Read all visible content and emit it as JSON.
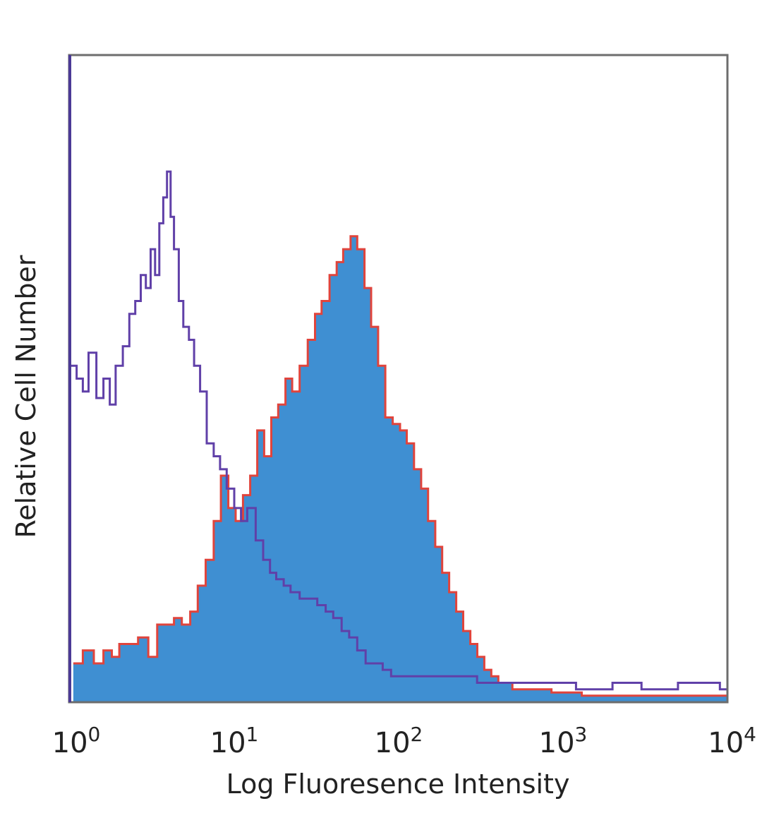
{
  "chart_data": {
    "type": "area",
    "xlabel": "Log Fluoresence Intensity",
    "ylabel": "Relative Cell Number",
    "x_scale": "log",
    "xlim": [
      1,
      10000
    ],
    "ylim": [
      0,
      100
    ],
    "grid": false,
    "legend": "none",
    "x_ticks": [
      {
        "value": 1,
        "base": "10",
        "exp": "0"
      },
      {
        "value": 10,
        "base": "10",
        "exp": "1"
      },
      {
        "value": 100,
        "base": "10",
        "exp": "2"
      },
      {
        "value": 1000,
        "base": "10",
        "exp": "3"
      },
      {
        "value": 10000,
        "base": "10",
        "exp": "4"
      }
    ],
    "series": [
      {
        "style": "filled",
        "fill": "#3f8fd2",
        "stroke": "#e0443c",
        "x": [
          1.05,
          1.2,
          1.4,
          1.6,
          1.8,
          2.0,
          2.3,
          2.6,
          3.0,
          3.4,
          3.8,
          4.3,
          4.8,
          5.4,
          6.0,
          6.7,
          7.5,
          8.3,
          9.2,
          10.2,
          11.3,
          12.5,
          13.8,
          15.2,
          16.8,
          18.5,
          20.5,
          22.5,
          25,
          28,
          31,
          34,
          38,
          42,
          46,
          51,
          56,
          62,
          68,
          75,
          83,
          92,
          102,
          112,
          124,
          137,
          151,
          167,
          184,
          203,
          224,
          247,
          273,
          301,
          332,
          366,
          404,
          446,
          492,
          543,
          600,
          700,
          850,
          1000,
          1300,
          1700,
          2200,
          3000,
          4000,
          5500,
          7000,
          9000
        ],
        "values": [
          6,
          8,
          6,
          8,
          7,
          9,
          9,
          10,
          7,
          12,
          12,
          13,
          12,
          14,
          18,
          22,
          28,
          35,
          30,
          28,
          32,
          35,
          42,
          38,
          44,
          46,
          50,
          48,
          52,
          56,
          60,
          62,
          66,
          68,
          70,
          72,
          70,
          64,
          58,
          52,
          44,
          43,
          42,
          40,
          36,
          33,
          28,
          24,
          20,
          17,
          14,
          11,
          9,
          7,
          5,
          4,
          3,
          3,
          2,
          2,
          2,
          2,
          1.5,
          1.5,
          1,
          1,
          1,
          1,
          1,
          1,
          1,
          1
        ]
      },
      {
        "style": "line",
        "stroke": "#6040a8",
        "x": [
          1.02,
          1.1,
          1.2,
          1.3,
          1.45,
          1.6,
          1.75,
          1.9,
          2.1,
          2.3,
          2.5,
          2.7,
          2.9,
          3.1,
          3.3,
          3.5,
          3.7,
          3.9,
          4.1,
          4.3,
          4.6,
          4.9,
          5.3,
          5.7,
          6.2,
          6.8,
          7.5,
          8.2,
          9.0,
          10.0,
          11,
          12,
          13.5,
          15,
          16.5,
          18,
          20,
          22,
          25,
          28,
          32,
          36,
          40,
          45,
          50,
          56,
          63,
          70,
          80,
          90,
          100,
          120,
          150,
          200,
          300,
          500,
          800,
          1200,
          2000,
          3000,
          5000,
          7000,
          9000
        ],
        "values": [
          52,
          50,
          48,
          54,
          47,
          50,
          46,
          52,
          55,
          60,
          62,
          66,
          64,
          70,
          66,
          74,
          78,
          82,
          75,
          70,
          62,
          58,
          56,
          52,
          48,
          40,
          38,
          36,
          33,
          30,
          28,
          30,
          25,
          22,
          20,
          19,
          18,
          17,
          16,
          16,
          15,
          14,
          13,
          11,
          10,
          8,
          6,
          6,
          5,
          4,
          4,
          4,
          4,
          4,
          3,
          3,
          3,
          2,
          3,
          2,
          3,
          3,
          2
        ]
      }
    ]
  }
}
